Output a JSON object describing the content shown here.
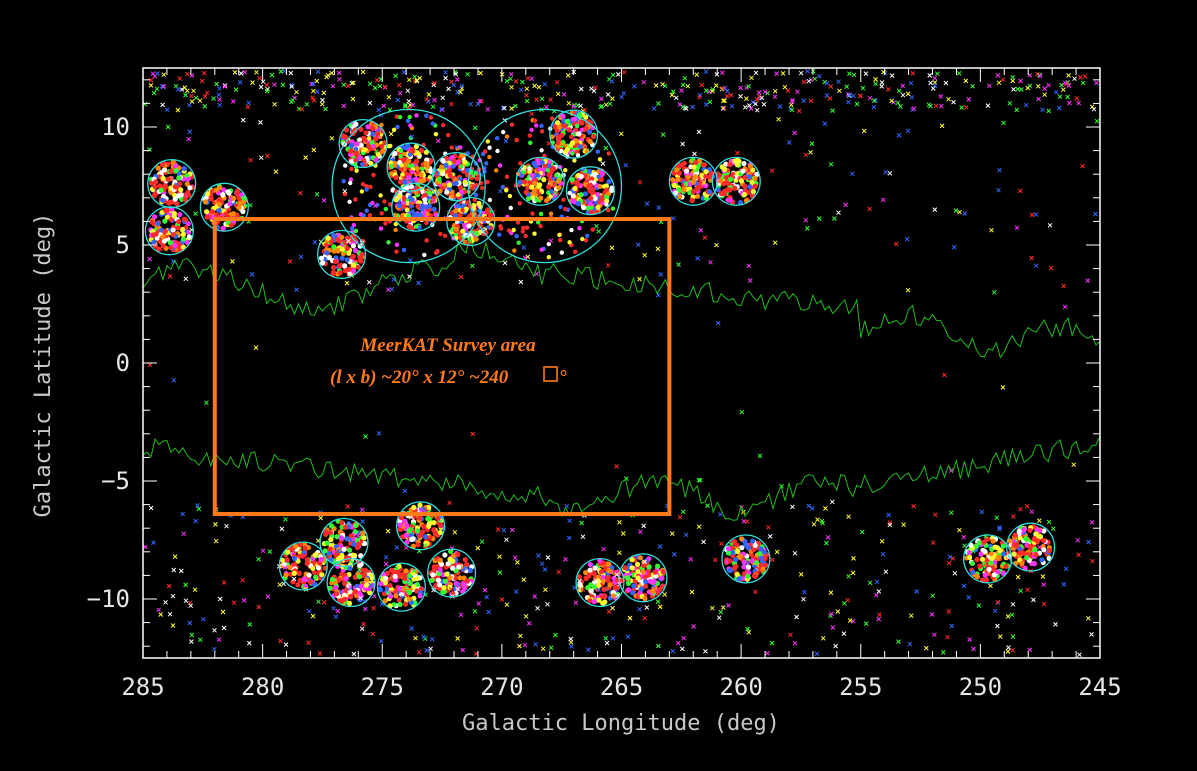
{
  "chart_data": {
    "type": "scatter",
    "title": "",
    "xlabel": "Galactic Longitude (deg)",
    "ylabel": "Galactic Latitude (deg)",
    "xlim": [
      285,
      245
    ],
    "ylim": [
      -12.5,
      12.5
    ],
    "x_ticks": [
      285,
      280,
      275,
      270,
      265,
      260,
      255,
      250,
      245
    ],
    "y_ticks": [
      10,
      5,
      0,
      -5,
      -10
    ],
    "grid": false,
    "survey_area": {
      "name": "MeerKAT Survey area",
      "l_range": [
        282,
        263
      ],
      "b_range": [
        -6.4,
        6.1
      ],
      "label_line1": "MeerKAT  Survey area",
      "label_line2": "(l x b) ~20° x 12° ~240",
      "label_suffix": "°"
    },
    "fields": [
      {
        "l": 283.8,
        "b": 7.6,
        "r": 1.0
      },
      {
        "l": 281.6,
        "b": 6.6,
        "r": 1.0
      },
      {
        "l": 283.9,
        "b": 5.6,
        "r": 1.0
      },
      {
        "l": 275.8,
        "b": 9.3,
        "r": 1.0
      },
      {
        "l": 273.8,
        "b": 8.3,
        "r": 1.0
      },
      {
        "l": 271.9,
        "b": 7.9,
        "r": 1.0
      },
      {
        "l": 273.6,
        "b": 6.6,
        "r": 1.0
      },
      {
        "l": 271.3,
        "b": 6.0,
        "r": 1.0
      },
      {
        "l": 276.7,
        "b": 4.6,
        "r": 1.0
      },
      {
        "l": 268.4,
        "b": 7.7,
        "r": 1.0
      },
      {
        "l": 267.0,
        "b": 9.7,
        "r": 1.0
      },
      {
        "l": 266.3,
        "b": 7.3,
        "r": 1.0
      },
      {
        "l": 262.0,
        "b": 7.7,
        "r": 1.0
      },
      {
        "l": 260.2,
        "b": 7.7,
        "r": 1.0
      },
      {
        "l": 276.6,
        "b": -7.6,
        "r": 1.0
      },
      {
        "l": 273.4,
        "b": -6.9,
        "r": 1.0
      },
      {
        "l": 278.3,
        "b": -8.6,
        "r": 1.0
      },
      {
        "l": 276.3,
        "b": -9.3,
        "r": 1.0
      },
      {
        "l": 274.2,
        "b": -9.5,
        "r": 1.0
      },
      {
        "l": 272.1,
        "b": -8.9,
        "r": 1.0
      },
      {
        "l": 265.9,
        "b": -9.3,
        "r": 1.0
      },
      {
        "l": 264.1,
        "b": -9.1,
        "r": 1.0
      },
      {
        "l": 259.8,
        "b": -8.3,
        "r": 1.0
      },
      {
        "l": 249.7,
        "b": -8.3,
        "r": 1.0
      },
      {
        "l": 247.9,
        "b": -7.8,
        "r": 1.0
      }
    ],
    "large_fields": [
      {
        "l": 273.9,
        "b": 7.5,
        "r": 3.2
      },
      {
        "l": 268.2,
        "b": 7.5,
        "r": 3.2
      }
    ],
    "point_colors": [
      "#ff2a2a",
      "#ff2a2a",
      "#ff2a2a",
      "#ffff33",
      "#33ff33",
      "#ff33ff",
      "#ffffff",
      "#3366ff",
      "#ff8800"
    ],
    "colors": {
      "frame": "#ffffff",
      "field_circle": "#33dddd",
      "survey_box": "#ff7a1a",
      "contour": "#22bb22"
    }
  }
}
